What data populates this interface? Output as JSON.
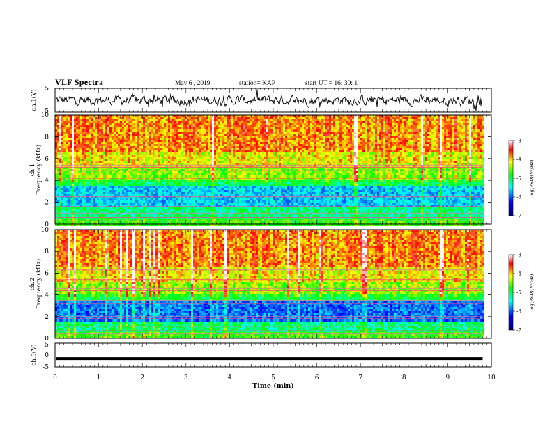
{
  "header": {
    "title": "VLF Spectra",
    "date": "May 6  , 2019",
    "station": "station= KAP",
    "start": "start  UT  =   16: 30: 1"
  },
  "chart_data": [
    {
      "type": "line",
      "ylabel": "ch.1(V)",
      "ylim": [
        -5,
        5
      ],
      "yticks": [
        "5",
        "-5"
      ],
      "xlim": [
        0,
        10
      ],
      "description_series": "noisy waveform around 0 V",
      "color": "#000000"
    },
    {
      "type": "heatmap",
      "ylabel_line1": "ch.1",
      "ylabel_line2": "Frequency  (kHz)",
      "ylim": [
        0,
        10
      ],
      "yticks": [
        "0",
        "2",
        "4",
        "6",
        "8",
        "10"
      ],
      "xlim": [
        0,
        10
      ],
      "data_end_min": 9.8,
      "colorbar": {
        "label": "log(PSD)(V²/Hz)",
        "range": [
          -7,
          -3
        ],
        "ticks": [
          "-3",
          "-4",
          "-5",
          "-6",
          "-7"
        ]
      },
      "horizontal_lines_khz": [
        0.3,
        0.6,
        1.0,
        1.6,
        2.2,
        2.5,
        3.4,
        4.2,
        4.9,
        5.2,
        5.4
      ]
    },
    {
      "type": "heatmap",
      "ylabel_line1": "ch.2",
      "ylabel_line2": "Frequency  (kHz)",
      "ylim": [
        0,
        10
      ],
      "yticks": [
        "0",
        "2",
        "4",
        "6",
        "8",
        "10"
      ],
      "xlim": [
        0,
        10
      ],
      "data_end_min": 9.8,
      "colorbar": {
        "label": "log(PSD)(V²/Hz)",
        "range": [
          -7,
          -3
        ],
        "ticks": [
          "-3",
          "-4",
          "-5",
          "-6",
          "-7"
        ]
      },
      "horizontal_lines_khz": [
        0.4,
        0.7,
        1.1,
        1.8,
        2.0,
        3.2,
        3.5,
        4.4,
        4.6,
        5.4,
        6.3
      ]
    },
    {
      "type": "line",
      "ylabel": "ch.3(V)",
      "ylim": [
        -5,
        5
      ],
      "yticks": [
        "5",
        "0",
        "-5"
      ],
      "xlim": [
        0,
        10
      ],
      "constant_value": -1.5,
      "color": "#000000"
    }
  ],
  "xaxis": {
    "label": "Time  (min)",
    "ticks": [
      "0",
      "1",
      "2",
      "3",
      "4",
      "5",
      "6",
      "7",
      "8",
      "9",
      "10"
    ]
  },
  "colors": {
    "line": "#000000",
    "colormap": [
      "#00007f",
      "#0000ff",
      "#00ffff",
      "#00ff00",
      "#ffff00",
      "#ff0000",
      "#ffffff"
    ]
  }
}
